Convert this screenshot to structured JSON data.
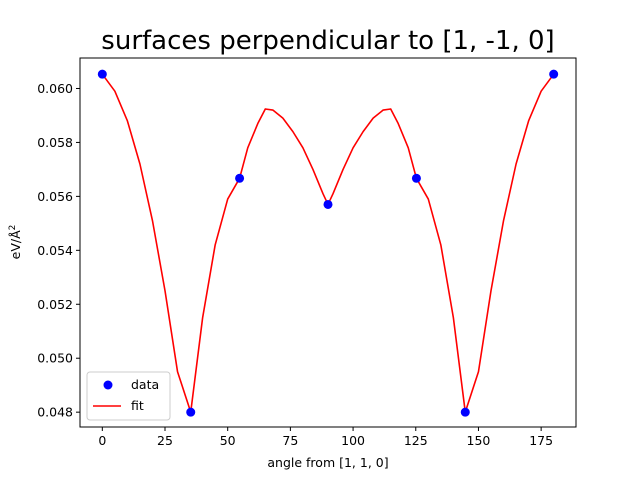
{
  "chart_data": {
    "type": "scatter",
    "title": "surfaces perpendicular to [1, -1, 0]",
    "xlabel": "angle from [1, 1, 0]",
    "ylabel": "eV/Å",
    "ylabel_superscript": "2",
    "xlim": [
      -8.9,
      188.9
    ],
    "ylim": [
      0.04745,
      0.06113
    ],
    "xticks": [
      0,
      25,
      50,
      75,
      100,
      125,
      150,
      175
    ],
    "yticks": [
      0.048,
      0.05,
      0.052,
      0.054,
      0.056,
      0.058,
      0.06
    ],
    "ytick_labels": [
      "0.048",
      "0.050",
      "0.052",
      "0.054",
      "0.056",
      "0.058",
      "0.060"
    ],
    "series": [
      {
        "name": "data",
        "kind": "points",
        "color": "#0000ff",
        "x": [
          0,
          35.26,
          54.74,
          90,
          125.26,
          144.74,
          180
        ],
        "y": [
          0.06053,
          0.048,
          0.05667,
          0.0557,
          0.05667,
          0.048,
          0.06053
        ]
      },
      {
        "name": "fit",
        "kind": "line",
        "color": "#ff0000",
        "x": [
          0,
          5,
          10,
          15,
          20,
          25,
          30,
          35.26,
          40,
          45,
          50,
          54.74,
          58,
          62,
          65,
          68,
          72,
          76,
          80,
          84,
          88,
          90,
          92,
          96,
          100,
          104,
          108,
          112,
          115,
          118,
          122,
          125.26,
          130,
          135,
          140,
          144.74,
          150,
          155,
          160,
          165,
          170,
          175,
          180
        ],
        "y": [
          0.06053,
          0.0599,
          0.0588,
          0.0572,
          0.0551,
          0.0525,
          0.0495,
          0.048,
          0.0515,
          0.0542,
          0.0559,
          0.05667,
          0.0578,
          0.0587,
          0.05924,
          0.0592,
          0.0589,
          0.0584,
          0.0578,
          0.057,
          0.0561,
          0.0557,
          0.0561,
          0.057,
          0.0578,
          0.0584,
          0.0589,
          0.0592,
          0.05924,
          0.0587,
          0.0578,
          0.05667,
          0.0559,
          0.0542,
          0.0515,
          0.048,
          0.0495,
          0.0525,
          0.0551,
          0.0572,
          0.0588,
          0.0599,
          0.06053
        ]
      }
    ],
    "legend": {
      "placement": "lower-left",
      "entries": [
        "data",
        "fit"
      ]
    },
    "grid": false
  }
}
